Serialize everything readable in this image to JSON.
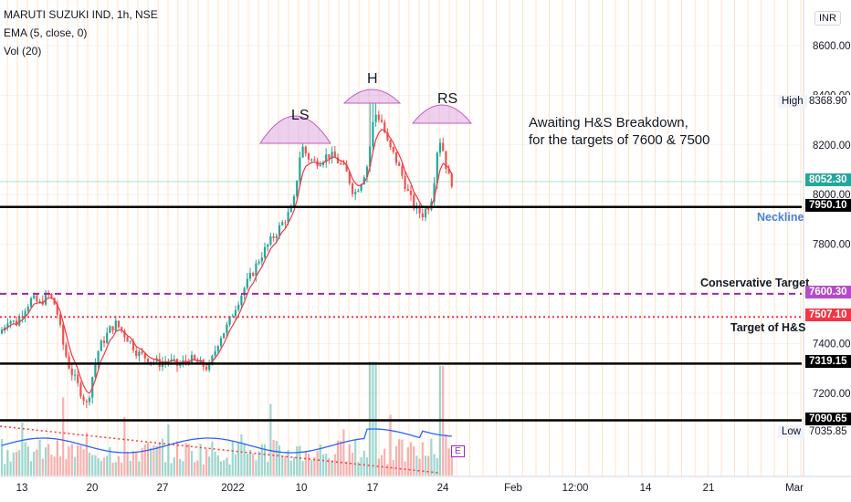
{
  "header": {
    "symbol_line": "MARUTI SUZUKI IND, 1h, NSE",
    "ema_line": "EMA (5, close, 0)",
    "vol_line": "Vol (20)",
    "currency": "INR"
  },
  "chart_data": {
    "type": "candlestick",
    "title": "MARUTI SUZUKI IND, 1h, NSE",
    "y_axis_ticks": [
      "8600.00",
      "8400.00",
      "8200.00",
      "8000.00",
      "7800.00",
      "7600.00",
      "7400.00",
      "7200.00"
    ],
    "x_axis_ticks": [
      "13",
      "20",
      "27",
      "2022",
      "10",
      "17",
      "24",
      "Feb",
      "12:00",
      "14",
      "21",
      "Mar"
    ],
    "ylim": [
      7000,
      8650
    ],
    "price_levels": [
      {
        "label": "High",
        "value": "8368.90",
        "color": "#ffffff",
        "text_color": "#131722"
      },
      {
        "label": "",
        "value": "8052.30",
        "color": "#26a69a"
      },
      {
        "label": "",
        "value": "7950.10",
        "color": "#000000"
      },
      {
        "label": "",
        "value": "7600.30",
        "color": "#b44bc8"
      },
      {
        "label": "",
        "value": "7507.10",
        "color": "#f23645"
      },
      {
        "label": "",
        "value": "7319.15",
        "color": "#000000"
      },
      {
        "label": "",
        "value": "7090.65",
        "color": "#000000"
      },
      {
        "label": "Low",
        "value": "7035.85",
        "color": "#ffffff",
        "text_color": "#131722"
      }
    ],
    "horizontal_lines": [
      {
        "value": 7950.1,
        "style": "solid",
        "color": "#000000"
      },
      {
        "value": 7600.3,
        "style": "dashed",
        "color": "#9c27b0"
      },
      {
        "value": 7507.1,
        "style": "dotted",
        "color": "#f23645"
      },
      {
        "value": 7319.15,
        "style": "solid",
        "color": "#000000"
      },
      {
        "value": 7090.65,
        "style": "solid",
        "color": "#000000"
      }
    ],
    "annotations": {
      "ls": "LS",
      "h": "H",
      "rs": "RS",
      "message_line1": "Awaiting H&S Breakdown,",
      "message_line2": "for the targets of 7600 & 7500",
      "neckline": "Neckline",
      "conservative_target": "Conservative Target",
      "target_hs": "Target of H&S",
      "e_badge": "E"
    },
    "price_path": [
      [
        7440,
        7500,
        7480,
        7540,
        7580,
        7560,
        7600,
        7550
      ],
      [
        7380,
        7300,
        7250,
        7200,
        7150,
        7280,
        7380,
        7420,
        7460,
        7480,
        7450
      ],
      [
        7420,
        7360,
        7340,
        7320,
        7330,
        7310,
        7340,
        7320,
        7300
      ],
      [
        7420,
        7470,
        7550,
        7620,
        7680,
        7750,
        7800,
        7850,
        7900,
        7950
      ],
      [
        8200,
        8150,
        8130,
        8140,
        8160,
        8150,
        8120,
        8080,
        8000
      ],
      [
        8050,
        8120,
        8330,
        8300,
        8200,
        8150,
        8080,
        8000,
        7940,
        7920
      ],
      [
        7960,
        8000,
        8100,
        8230,
        8210,
        8150,
        8080,
        8052
      ]
    ]
  }
}
